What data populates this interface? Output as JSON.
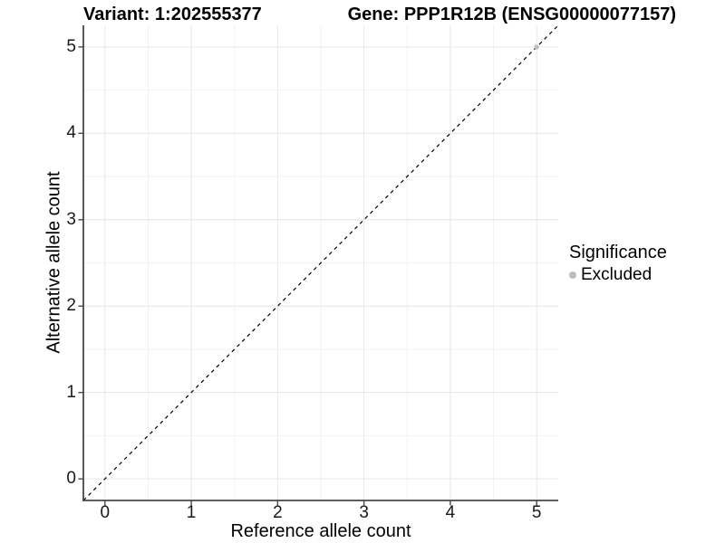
{
  "chart_data": {
    "type": "scatter",
    "title_left": "Variant: 1:202555377",
    "title_right": "Gene: PPP1R12B (ENSG00000077157)",
    "xlabel": "Reference allele count",
    "ylabel": "Alternative allele count",
    "xlim": [
      -0.25,
      5.25
    ],
    "ylim": [
      -0.25,
      5.25
    ],
    "x_ticks": [
      0,
      1,
      2,
      3,
      4,
      5
    ],
    "y_ticks": [
      0,
      1,
      2,
      3,
      4,
      5
    ],
    "x_minor_ticks": [
      0.5,
      1.5,
      2.5,
      3.5,
      4.5
    ],
    "y_minor_ticks": [
      0.5,
      1.5,
      2.5,
      3.5,
      4.5
    ],
    "grid": "major+minor",
    "identity_line": {
      "style": "dashed",
      "slope": 1,
      "intercept": 0,
      "color": "#000000"
    },
    "series": [
      {
        "name": "Excluded",
        "color": "#bdbdbd",
        "points": [
          {
            "x": 5,
            "y": 5
          }
        ]
      }
    ],
    "legend": {
      "title": "Significance",
      "position": "right",
      "items": [
        {
          "label": "Excluded",
          "color": "#bdbdbd"
        }
      ]
    },
    "colors": {
      "background": "#ffffff",
      "major_grid": "#e6e6e6",
      "minor_grid": "#f2f2f2",
      "axis_line": "#474747",
      "tick_text": "#1a1a1a"
    }
  }
}
